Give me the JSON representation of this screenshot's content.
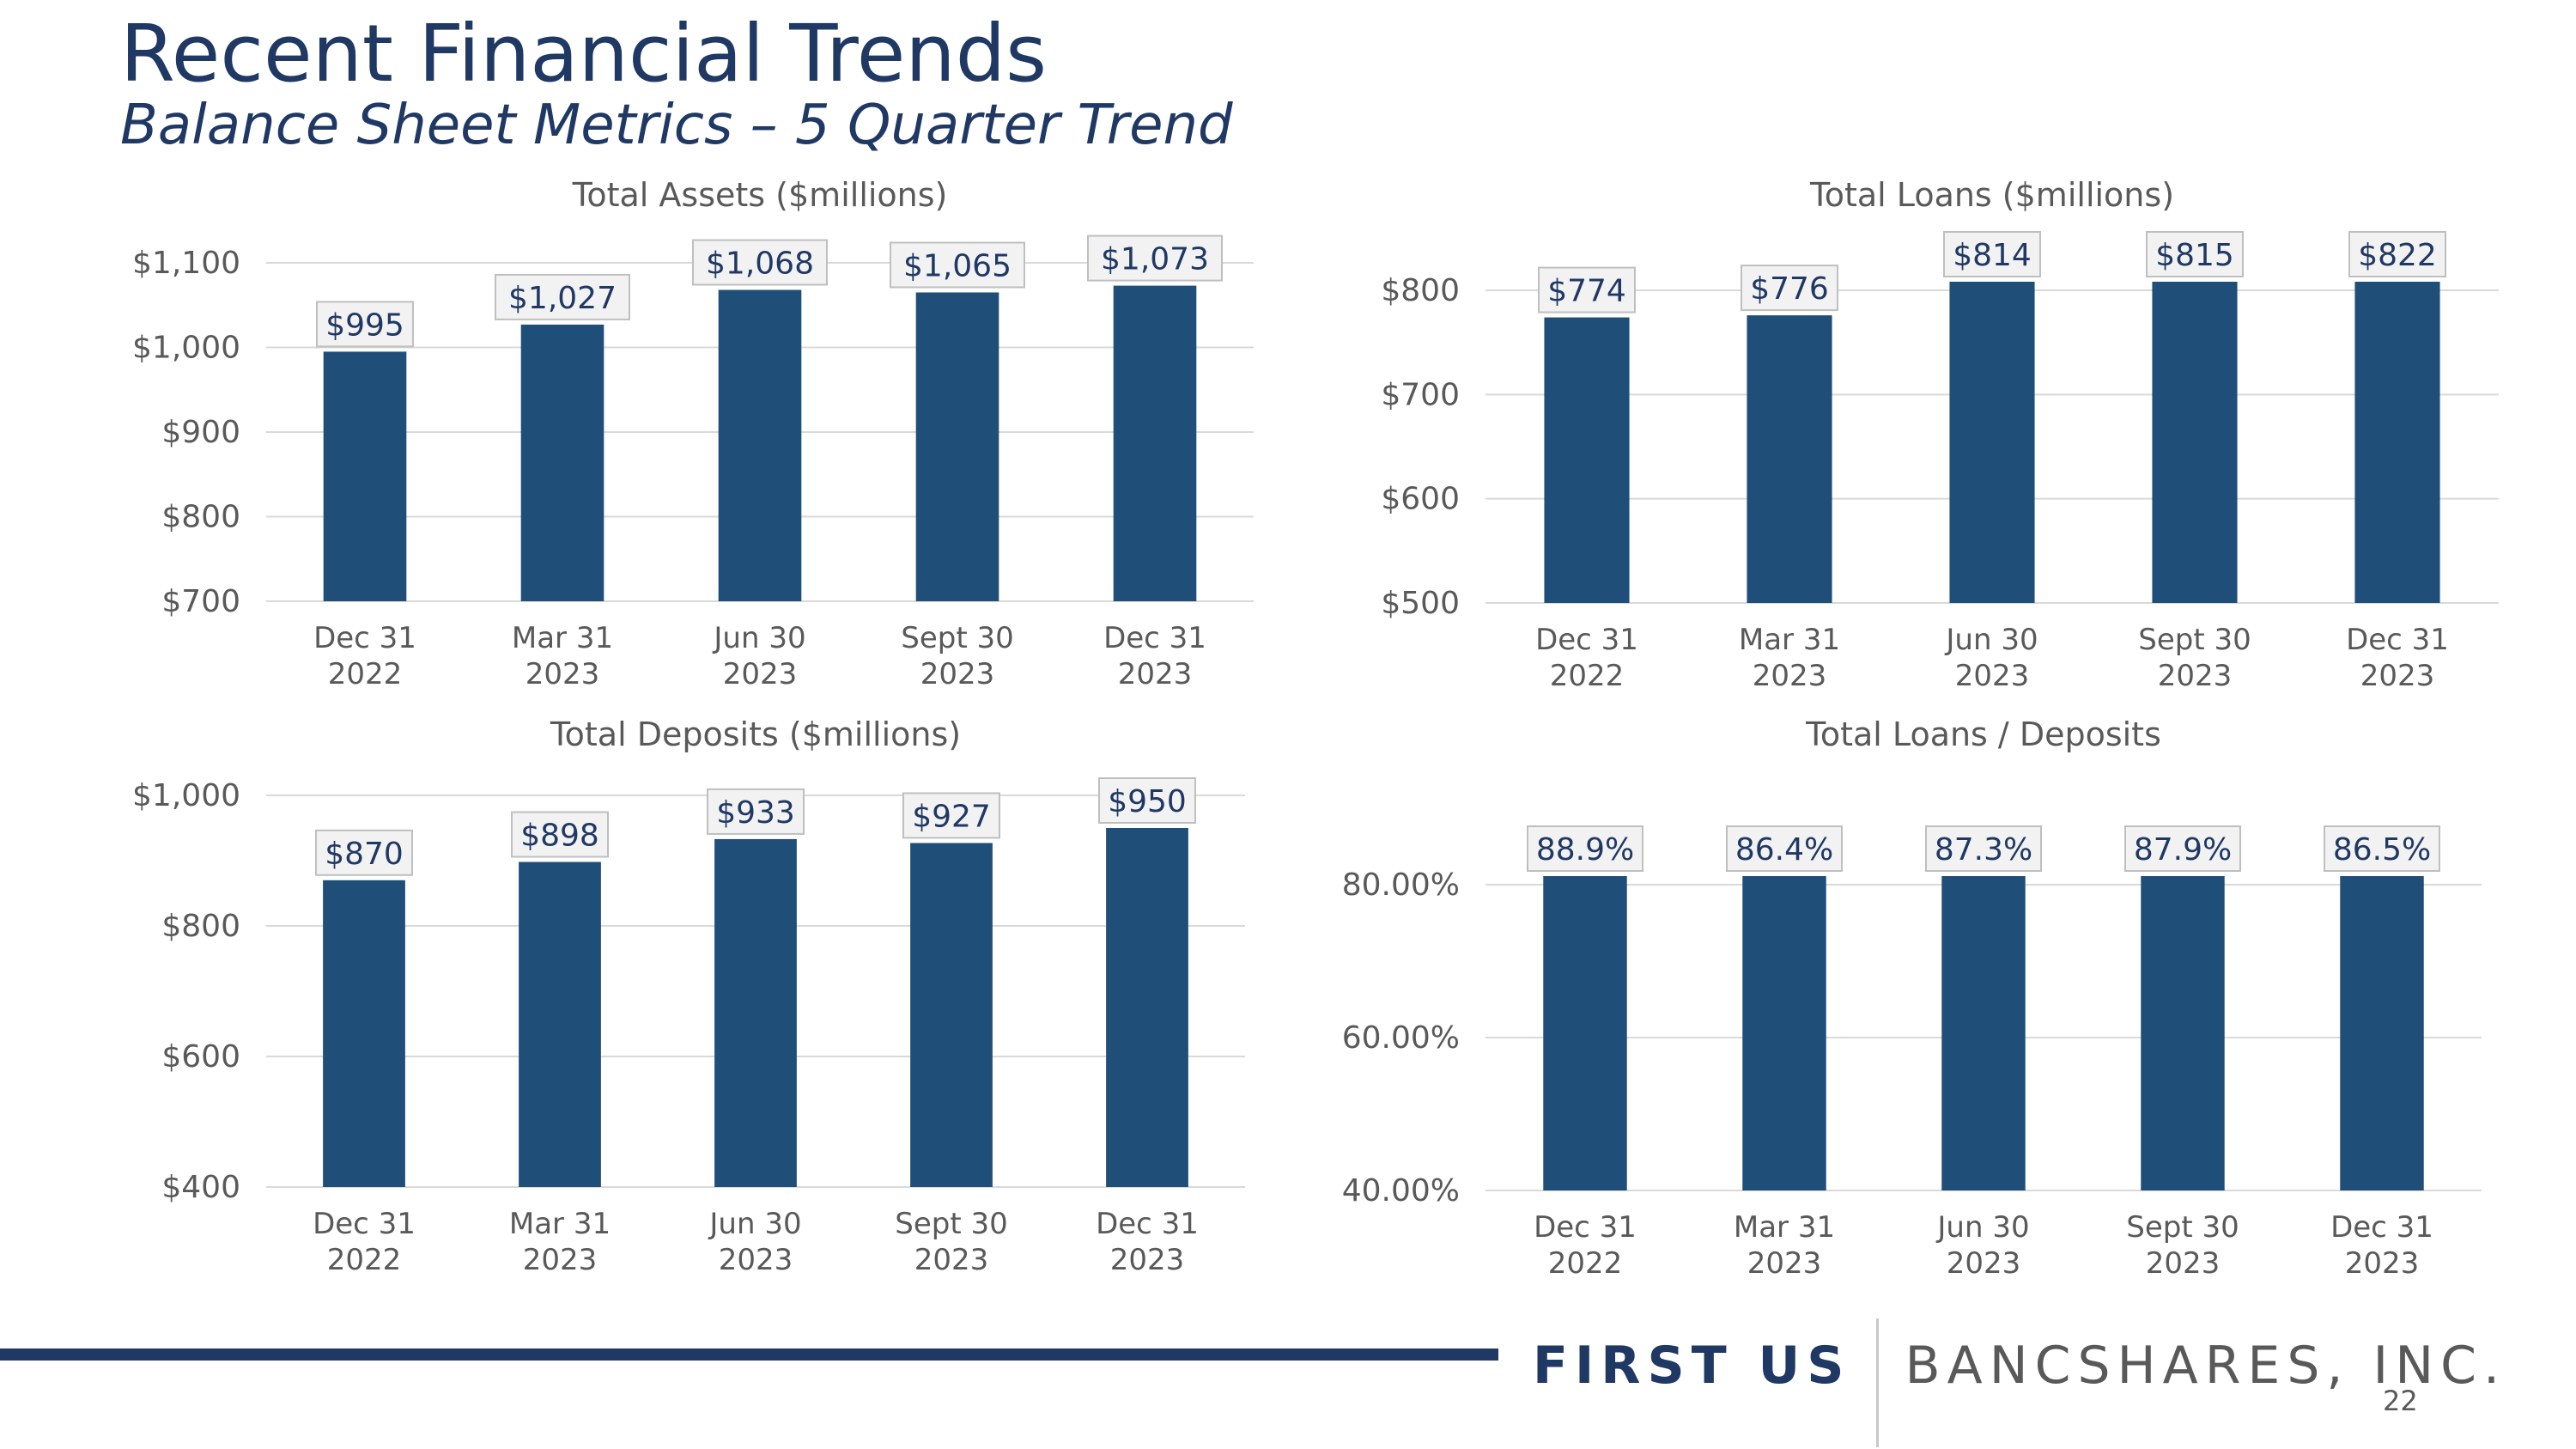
{
  "header": {
    "title": "Recent Financial Trends",
    "subtitle": "Balance Sheet Metrics – 5 Quarter Trend"
  },
  "footer": {
    "logo_first": "FIRST US",
    "logo_rest": "BANCSHARES, INC.",
    "page_number": "22"
  },
  "colors": {
    "bar": "#1f4e79",
    "text": "#1f3864",
    "grid": "#d9d9d9",
    "label_box": "#f2f2f2"
  },
  "chart_data": [
    {
      "type": "bar",
      "title": "Total Assets ($millions)",
      "categories": [
        [
          "Dec 31",
          "2022"
        ],
        [
          "Mar 31",
          "2023"
        ],
        [
          "Jun 30",
          "2023"
        ],
        [
          "Sept 30",
          "2023"
        ],
        [
          "Dec 31",
          "2023"
        ]
      ],
      "values": [
        995,
        1027,
        1068,
        1065,
        1073
      ],
      "data_labels": [
        "$995",
        "$1,027",
        "$1,068",
        "$1,065",
        "$1,073"
      ],
      "ylim": [
        700,
        1100
      ],
      "yticks": [
        700,
        800,
        900,
        1000,
        1100
      ],
      "ytick_labels": [
        "$700",
        "$800",
        "$900",
        "$1,000",
        "$1,100"
      ],
      "grid": true
    },
    {
      "type": "bar",
      "title": "Total Loans ($millions)",
      "categories": [
        [
          "Dec 31",
          "2022"
        ],
        [
          "Mar 31",
          "2023"
        ],
        [
          "Jun 30",
          "2023"
        ],
        [
          "Sept 30",
          "2023"
        ],
        [
          "Dec 31",
          "2023"
        ]
      ],
      "values": [
        774,
        776,
        814,
        815,
        822
      ],
      "data_labels": [
        "$774",
        "$776",
        "$814",
        "$815",
        "$822"
      ],
      "ylim": [
        500,
        800
      ],
      "yticks": [
        500,
        600,
        700,
        800
      ],
      "ytick_labels": [
        "$500",
        "$600",
        "$700",
        "$800"
      ],
      "grid": true
    },
    {
      "type": "bar",
      "title": "Total Deposits ($millions)",
      "categories": [
        [
          "Dec 31",
          "2022"
        ],
        [
          "Mar 31",
          "2023"
        ],
        [
          "Jun 30",
          "2023"
        ],
        [
          "Sept 30",
          "2023"
        ],
        [
          "Dec 31",
          "2023"
        ]
      ],
      "values": [
        870,
        898,
        933,
        927,
        950
      ],
      "data_labels": [
        "$870",
        "$898",
        "$933",
        "$927",
        "$950"
      ],
      "ylim": [
        400,
        1000
      ],
      "yticks": [
        400,
        600,
        800,
        1000
      ],
      "ytick_labels": [
        "$400",
        "$600",
        "$800",
        "$1,000"
      ],
      "grid": true
    },
    {
      "type": "bar",
      "title": "Total Loans / Deposits",
      "categories": [
        [
          "Dec 31",
          "2022"
        ],
        [
          "Mar 31",
          "2023"
        ],
        [
          "Jun 30",
          "2023"
        ],
        [
          "Sept 30",
          "2023"
        ],
        [
          "Dec 31",
          "2023"
        ]
      ],
      "values": [
        88.9,
        86.4,
        87.3,
        87.9,
        86.5
      ],
      "data_labels": [
        "88.9%",
        "86.4%",
        "87.3%",
        "87.9%",
        "86.5%"
      ],
      "ylim": [
        40,
        80
      ],
      "yticks": [
        40,
        60,
        80
      ],
      "ytick_labels": [
        "40.00%",
        "60.00%",
        "80.00%"
      ],
      "grid": true
    }
  ]
}
